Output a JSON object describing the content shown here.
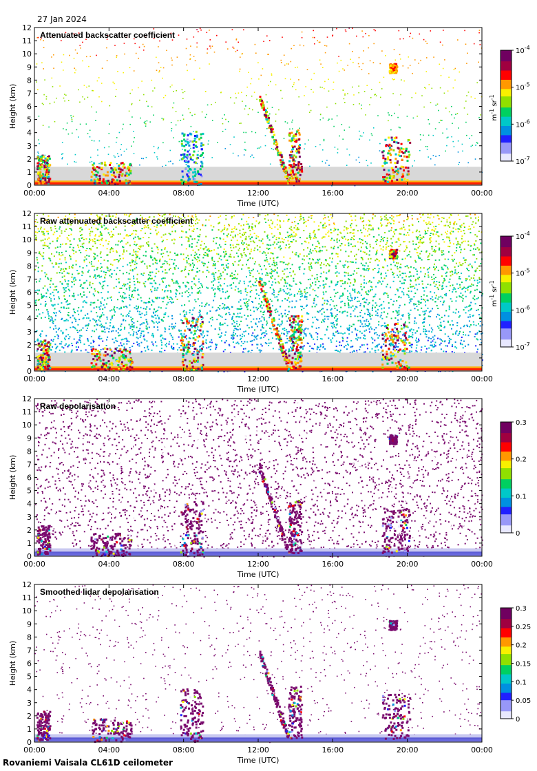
{
  "date_label": "27 Jan 2024",
  "footer": "Rovaniemi Vaisala CL61D ceilometer",
  "colors": {
    "axis": "#000000",
    "cloud_gray": "#d8d8d8",
    "depol_purple": "#7a0a6e"
  },
  "chart_data": [
    {
      "type": "heatmap",
      "title": "Attenuated backscatter coefficient",
      "xlabel": "Time (UTC)",
      "ylabel": "Height (km)",
      "xticks": [
        "00:00",
        "04:00",
        "08:00",
        "12:00",
        "16:00",
        "20:00",
        "00:00"
      ],
      "xlim_hours": [
        0,
        24
      ],
      "ylim": [
        0,
        12
      ],
      "yticks": [
        0,
        1,
        2,
        3,
        4,
        5,
        6,
        7,
        8,
        9,
        10,
        11,
        12
      ],
      "colorbar": {
        "scale": "log",
        "ticks": [
          "10",
          "10",
          "10",
          "10"
        ],
        "exponents": [
          "-4",
          "-5",
          "-6",
          "-7"
        ],
        "unit_main": "m",
        "unit_exp1": "-1",
        "unit_mid": " sr",
        "unit_exp2": "-1"
      },
      "features": [
        {
          "name": "morning cloud",
          "t": [
            0.1,
            0.8
          ],
          "h": [
            0.2,
            2.4
          ]
        },
        {
          "name": "low cloud",
          "t": [
            3.0,
            5.2
          ],
          "h": [
            0.1,
            1.8
          ]
        },
        {
          "name": "aerosol plume",
          "t": [
            7.8,
            9.0
          ],
          "h": [
            0.1,
            4.2
          ]
        },
        {
          "name": "falling streak",
          "t": [
            12.0,
            13.6
          ],
          "h": [
            0.3,
            7.0
          ]
        },
        {
          "name": "cloud column",
          "t": [
            13.6,
            14.3
          ],
          "h": [
            0.3,
            4.3
          ]
        },
        {
          "name": "evening cloud",
          "t": [
            18.6,
            20.1
          ],
          "h": [
            0.3,
            3.7
          ]
        },
        {
          "name": "high layer",
          "t": [
            19.0,
            19.4
          ],
          "h": [
            8.6,
            9.3
          ]
        }
      ]
    },
    {
      "type": "heatmap",
      "title": "Raw attenuated backscatter coefficient",
      "xlabel": "Time (UTC)",
      "ylabel": "Height (km)",
      "xticks": [
        "00:00",
        "04:00",
        "08:00",
        "12:00",
        "16:00",
        "20:00",
        "00:00"
      ],
      "xlim_hours": [
        0,
        24
      ],
      "ylim": [
        0,
        12
      ],
      "yticks": [
        0,
        1,
        2,
        3,
        4,
        5,
        6,
        7,
        8,
        9,
        10,
        11,
        12
      ],
      "colorbar": {
        "scale": "log",
        "ticks": [
          "10",
          "10",
          "10",
          "10"
        ],
        "exponents": [
          "-4",
          "-5",
          "-6",
          "-7"
        ],
        "unit_main": "m",
        "unit_exp1": "-1",
        "unit_mid": " sr",
        "unit_exp2": "-1"
      }
    },
    {
      "type": "heatmap",
      "title": "Raw depolarisation",
      "xlabel": "Time (UTC)",
      "ylabel": "Height (km)",
      "xticks": [
        "00:00",
        "04:00",
        "08:00",
        "12:00",
        "16:00",
        "20:00",
        "00:00"
      ],
      "xlim_hours": [
        0,
        24
      ],
      "ylim": [
        0,
        12
      ],
      "yticks": [
        0,
        1,
        2,
        3,
        4,
        5,
        6,
        7,
        8,
        9,
        10,
        11,
        12
      ],
      "colorbar": {
        "scale": "linear",
        "ticks": [
          "0.3",
          "0.2",
          "0.1",
          "0"
        ]
      }
    },
    {
      "type": "heatmap",
      "title": "Smoothed lidar depolarisation",
      "xlabel": "Time (UTC)",
      "ylabel": "Height (km)",
      "xticks": [
        "00:00",
        "04:00",
        "08:00",
        "12:00",
        "16:00",
        "20:00",
        "00:00"
      ],
      "xlim_hours": [
        0,
        24
      ],
      "ylim": [
        0,
        12
      ],
      "yticks": [
        0,
        1,
        2,
        3,
        4,
        5,
        6,
        7,
        8,
        9,
        10,
        11,
        12
      ],
      "colorbar": {
        "scale": "linear",
        "ticks": [
          "0.3",
          "0.25",
          "0.2",
          "0.15",
          "0.1",
          "0.05",
          "0"
        ]
      }
    }
  ]
}
